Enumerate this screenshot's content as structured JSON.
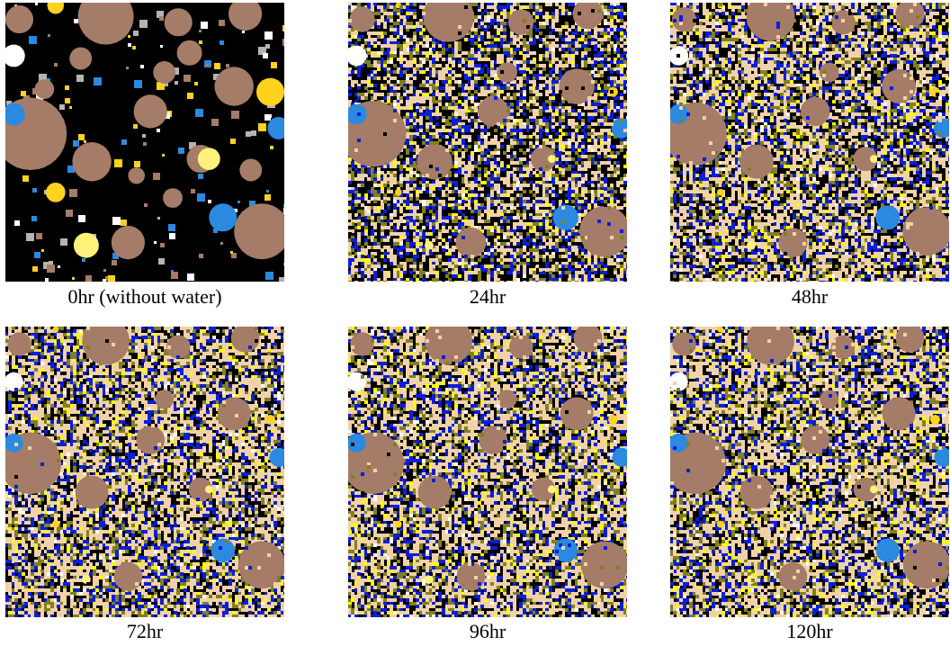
{
  "figure": {
    "panels": [
      {
        "caption": "0hr (without water)",
        "hours": 0,
        "water_added": false
      },
      {
        "caption": "24hr",
        "hours": 24,
        "water_added": true
      },
      {
        "caption": "48hr",
        "hours": 48,
        "water_added": true
      },
      {
        "caption": "72hr",
        "hours": 72,
        "water_added": true
      },
      {
        "caption": "96hr",
        "hours": 96,
        "water_added": true
      },
      {
        "caption": "120hr",
        "hours": 120,
        "water_added": true
      }
    ],
    "phase_colors": {
      "pore_black": "#000000",
      "unhydrated_brown": "#a57c68",
      "hydrate_tan": "#f1d2a8",
      "hydrate_olive": "#808020",
      "hydrate_blue": "#0a1fd8",
      "light_blue": "#2b8ae0",
      "yellow": "#ffd21e",
      "pale_yellow": "#fff27a",
      "bright_yellow": "#ffff00",
      "white": "#ffffff",
      "gray": "#b4b4b4"
    }
  }
}
